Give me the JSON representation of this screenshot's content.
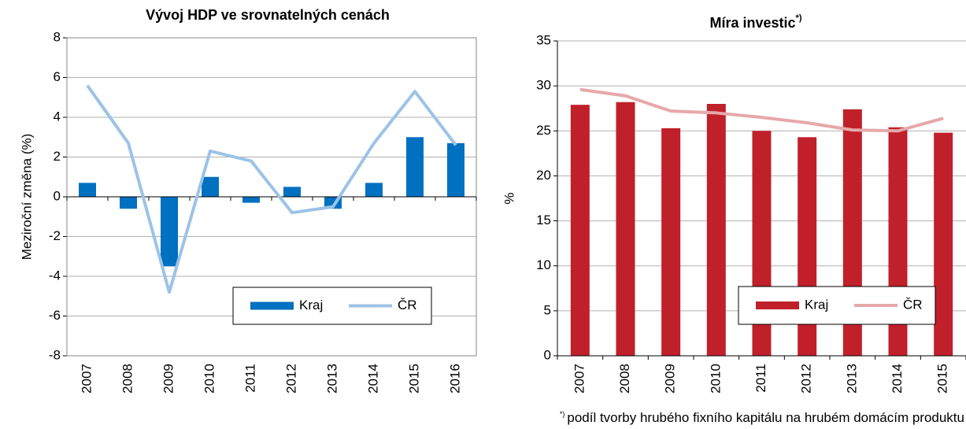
{
  "chart_data": [
    {
      "type": "bar",
      "title": "Vývoj HDP ve srovnatelných cenách",
      "y_label": "Meziroční změna (%)",
      "categories": [
        "2007",
        "2008",
        "2009",
        "2010",
        "2011",
        "2012",
        "2013",
        "2014",
        "2015",
        "2016"
      ],
      "series": [
        {
          "name": "Kraj",
          "type": "bar",
          "color": "#0070c0",
          "values": [
            0.7,
            -0.6,
            -3.5,
            1.0,
            -0.3,
            0.5,
            -0.6,
            0.7,
            3.0,
            2.7
          ]
        },
        {
          "name": "ČR",
          "type": "line",
          "color": "#9dc3e6",
          "values": [
            5.6,
            2.7,
            -4.8,
            2.3,
            1.8,
            -0.8,
            -0.5,
            2.7,
            5.3,
            2.6
          ]
        }
      ],
      "ylim": [
        -8,
        8
      ],
      "yticks": [
        -8,
        -6,
        -4,
        -2,
        0,
        2,
        4,
        6,
        8
      ],
      "grid": true,
      "legend": "lower right"
    },
    {
      "type": "bar",
      "title": "Míra investic",
      "title_sup": "*)",
      "y_label": "%",
      "categories": [
        "2007",
        "2008",
        "2009",
        "2010",
        "2011",
        "2012",
        "2013",
        "2014",
        "2015"
      ],
      "series": [
        {
          "name": "Kraj",
          "type": "bar",
          "color": "#c0202a",
          "values": [
            27.9,
            28.2,
            25.3,
            28.0,
            25.0,
            24.3,
            27.4,
            25.4,
            24.8
          ]
        },
        {
          "name": "ČR",
          "type": "line",
          "color": "#e6a8ab",
          "values": [
            29.6,
            28.9,
            27.2,
            27.0,
            26.5,
            25.9,
            25.1,
            25.0,
            26.4
          ]
        }
      ],
      "ylim": [
        0,
        35
      ],
      "yticks": [
        0,
        5,
        10,
        15,
        20,
        25,
        30,
        35
      ],
      "grid": true,
      "legend": "lower right",
      "footnote_mark": "*)",
      "footnote": "podíl tvorby hrubého fixního kapitálu na hrubém domácím produktu"
    }
  ]
}
